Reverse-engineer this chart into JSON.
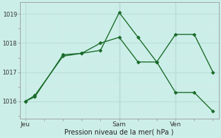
{
  "background_color": "#cceee8",
  "grid_color_major": "#b8ddd8",
  "grid_color_minor": "#d4eeea",
  "line_color": "#1a6b2a",
  "series1_x": [
    0,
    0.5,
    2,
    3,
    4,
    5,
    6,
    7,
    8,
    9,
    10
  ],
  "series1_y": [
    1016.0,
    1016.2,
    1017.55,
    1017.65,
    1017.75,
    1019.05,
    1018.2,
    1017.35,
    1018.3,
    1018.3,
    1017.0
  ],
  "series2_x": [
    0,
    0.5,
    2,
    3,
    4,
    5,
    6,
    7,
    8,
    9,
    10
  ],
  "series2_y": [
    1016.0,
    1016.15,
    1017.6,
    1017.65,
    1018.0,
    1018.2,
    1017.35,
    1017.35,
    1016.3,
    1016.3,
    1015.65
  ],
  "xlabel": "Pression niveau de la mer( hPa )",
  "yticks": [
    1016,
    1017,
    1018,
    1019
  ],
  "ylim": [
    1015.4,
    1019.4
  ],
  "xlim": [
    -0.3,
    10.3
  ],
  "xtick_positions": [
    0,
    5,
    8
  ],
  "xtick_labels": [
    "Jeu",
    "Sam",
    "Ven"
  ],
  "vline_sam": 5,
  "vline_ven": 8,
  "vline_sam_color": "#666666",
  "vline_ven_color": "#aaaaaa"
}
